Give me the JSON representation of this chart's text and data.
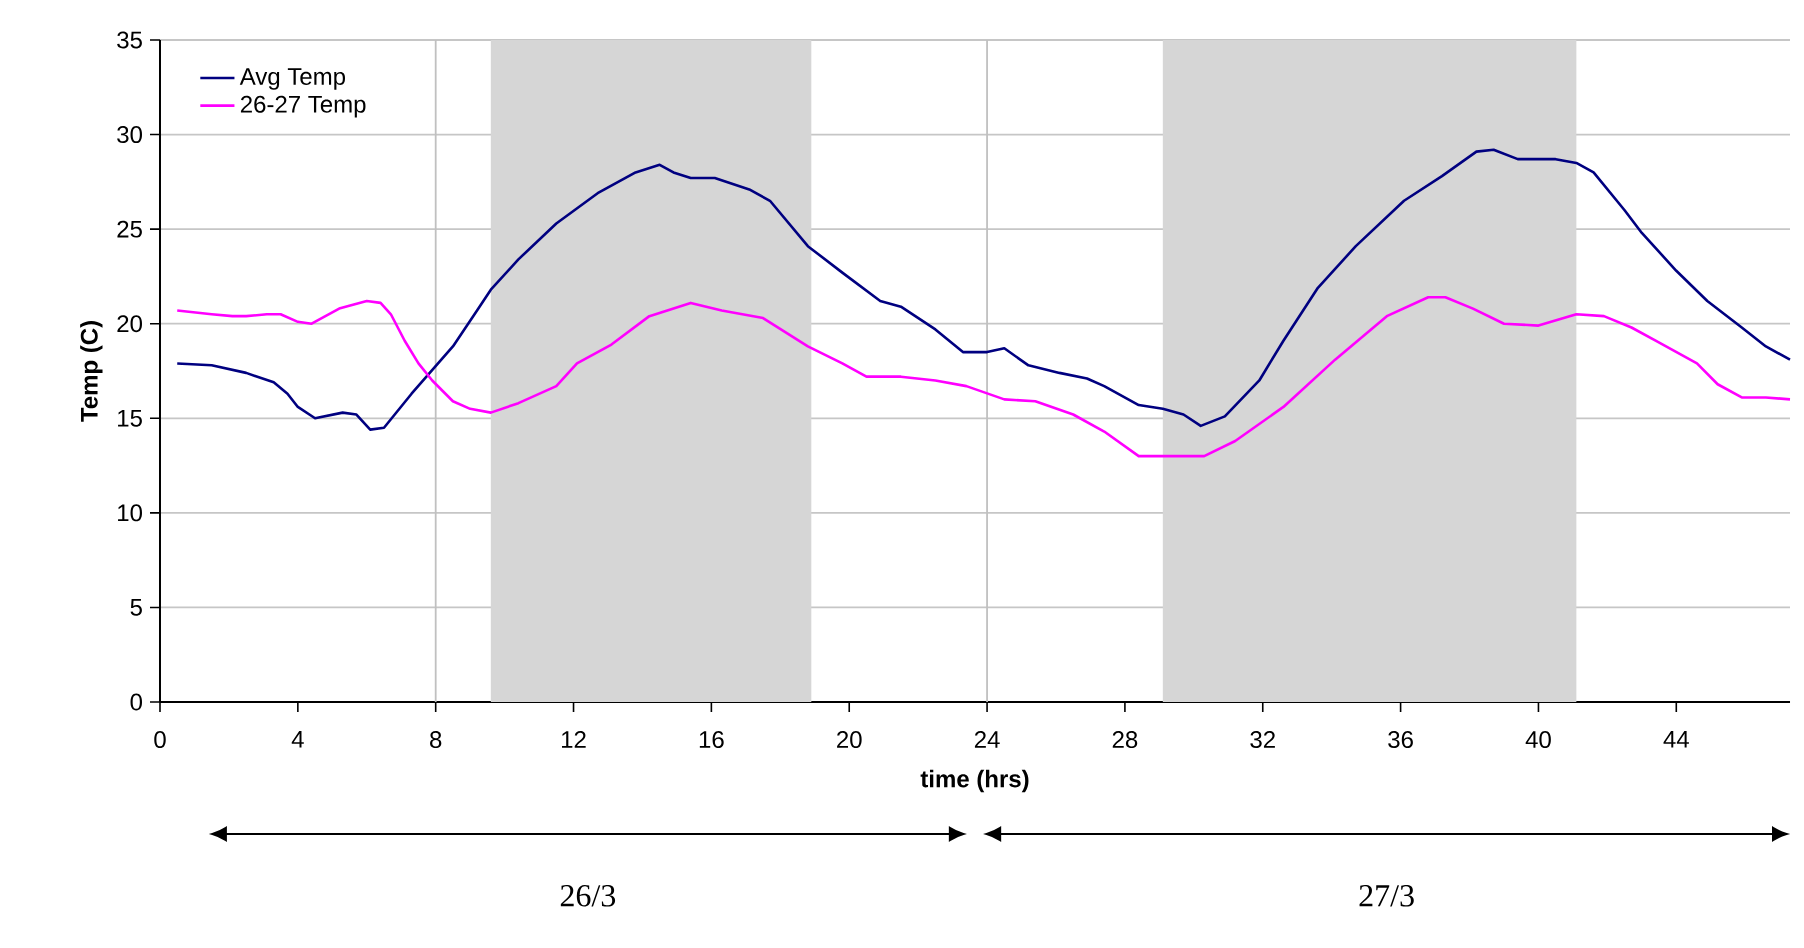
{
  "chart_data": {
    "type": "line",
    "xlabel": "time (hrs)",
    "ylabel": "Temp (C)",
    "series": [
      {
        "name": "Avg Temp",
        "color": "#000080",
        "x": [
          0.5,
          1.5,
          2.5,
          3.3,
          3.7,
          4.0,
          4.5,
          5.3,
          5.7,
          6.1,
          6.5,
          7.3,
          8.5,
          9.2,
          9.6,
          10.4,
          11.5,
          12.7,
          13.8,
          14.5,
          14.9,
          15.4,
          16.1,
          17.1,
          17.7,
          18.8,
          19.8,
          20.9,
          21.5,
          22.5,
          23.3,
          24.0,
          24.5,
          25.2,
          26.1,
          26.9,
          27.4,
          28.4,
          29.1,
          29.7,
          30.2,
          30.9,
          31.9,
          32.6,
          33.6,
          34.7,
          36.1,
          37.2,
          38.2,
          38.7,
          39.4,
          40.5,
          41.1,
          41.6,
          42.5,
          43.0,
          44.0,
          44.9,
          45.9,
          46.6,
          47.3
        ],
        "values": [
          17.9,
          17.8,
          17.4,
          16.9,
          16.3,
          15.6,
          15.0,
          15.3,
          15.2,
          14.4,
          14.5,
          16.3,
          18.8,
          20.7,
          21.8,
          23.4,
          25.3,
          26.9,
          28.0,
          28.4,
          28.0,
          27.7,
          27.7,
          27.1,
          26.5,
          24.1,
          22.7,
          21.2,
          20.9,
          19.7,
          18.5,
          18.5,
          18.7,
          17.8,
          17.4,
          17.1,
          16.7,
          15.7,
          15.5,
          15.2,
          14.6,
          15.1,
          17.0,
          19.1,
          21.9,
          24.1,
          26.5,
          27.8,
          29.1,
          29.2,
          28.7,
          28.7,
          28.5,
          28.0,
          26.0,
          24.8,
          22.8,
          21.2,
          19.8,
          18.8,
          18.1
        ]
      },
      {
        "name": "26-27 Temp",
        "color": "#ff00ff",
        "x": [
          0.5,
          1.5,
          2.1,
          2.5,
          3.1,
          3.5,
          4.0,
          4.4,
          5.2,
          6.0,
          6.4,
          6.7,
          7.1,
          7.5,
          7.9,
          8.5,
          9.0,
          9.6,
          10.4,
          11.5,
          12.1,
          13.1,
          14.2,
          15.4,
          16.3,
          17.5,
          18.8,
          19.8,
          20.5,
          21.5,
          22.5,
          23.4,
          24.5,
          25.4,
          26.5,
          27.4,
          28.4,
          29.1,
          30.3,
          31.2,
          32.6,
          34.1,
          35.6,
          36.8,
          37.3,
          38.1,
          39.0,
          40.0,
          41.1,
          41.9,
          42.7,
          43.4,
          44.6,
          45.2,
          45.9,
          46.6,
          47.3
        ],
        "values": [
          20.7,
          20.5,
          20.4,
          20.4,
          20.5,
          20.5,
          20.1,
          20.0,
          20.8,
          21.2,
          21.1,
          20.5,
          19.1,
          17.9,
          17.0,
          15.9,
          15.5,
          15.3,
          15.8,
          16.7,
          17.9,
          18.9,
          20.4,
          21.1,
          20.7,
          20.3,
          18.8,
          17.9,
          17.2,
          17.2,
          17.0,
          16.7,
          16.0,
          15.9,
          15.2,
          14.3,
          13.0,
          13.0,
          13.0,
          13.8,
          15.6,
          18.1,
          20.4,
          21.4,
          21.4,
          20.8,
          20.0,
          19.9,
          20.5,
          20.4,
          19.8,
          19.1,
          17.9,
          16.8,
          16.1,
          16.1,
          16.0
        ]
      }
    ],
    "xlim": [
      0,
      47.3
    ],
    "xticks": [
      0,
      4,
      8,
      12,
      16,
      20,
      24,
      28,
      32,
      36,
      40,
      44
    ],
    "ylim": [
      0,
      35
    ],
    "yticks": [
      0,
      5,
      10,
      15,
      20,
      25,
      30,
      35
    ],
    "grid": "y",
    "legend": "top left",
    "marker": "none",
    "line_style": "solid",
    "ref_lines": [
      {
        "axis": "x",
        "value": 8,
        "color": "#c0c0c0"
      },
      {
        "axis": "x",
        "value": 24,
        "color": "#c0c0c0"
      }
    ],
    "bands": [
      {
        "axis": "x",
        "from": 9.6,
        "to": 18.9,
        "color": "#d6d6d6"
      },
      {
        "axis": "x",
        "from": 29.1,
        "to": 41.1,
        "color": "#d6d6d6"
      }
    ],
    "annotations": [
      "26/3",
      "27/3"
    ]
  }
}
